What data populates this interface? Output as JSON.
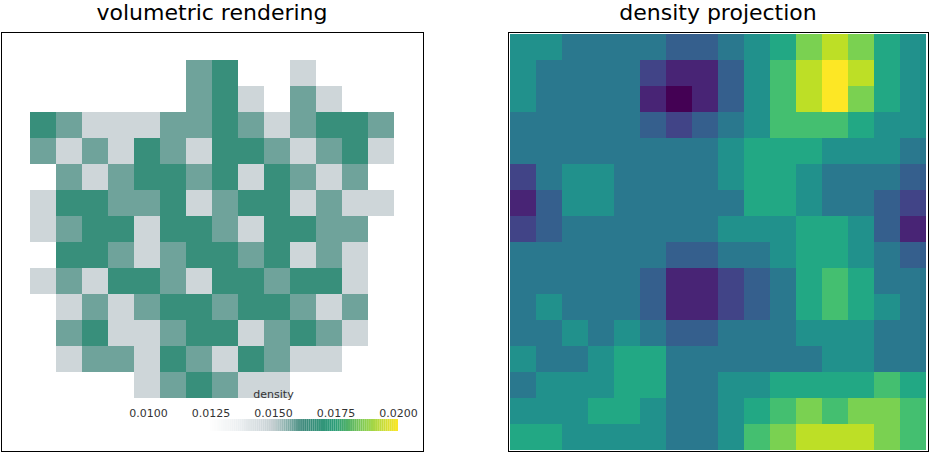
{
  "chart_data": [
    {
      "type": "heatmap",
      "title": "volumetric rendering",
      "tick_labels": false,
      "cells": [
        [
          null,
          null,
          null,
          null,
          null,
          null,
          null,
          null,
          null,
          null,
          null,
          null,
          null,
          null,
          null,
          null
        ],
        [
          null,
          null,
          null,
          null,
          null,
          null,
          null,
          0.0158,
          0.0166,
          null,
          null,
          0.0147,
          null,
          null,
          null,
          null
        ],
        [
          null,
          null,
          null,
          null,
          null,
          null,
          null,
          0.0158,
          0.0166,
          0.0147,
          null,
          0.0158,
          0.0147,
          null,
          null,
          null
        ],
        [
          null,
          0.0166,
          0.0158,
          0.0147,
          0.0147,
          0.0147,
          0.0158,
          0.0158,
          0.0166,
          0.0158,
          0.0147,
          0.0158,
          0.0166,
          0.0166,
          0.0158,
          null
        ],
        [
          null,
          0.0158,
          0.0147,
          0.0158,
          0.0147,
          0.0166,
          0.0158,
          0.0147,
          0.0166,
          0.0166,
          0.0158,
          0.0147,
          0.0158,
          0.0166,
          0.0147,
          null
        ],
        [
          null,
          null,
          0.0158,
          0.0147,
          0.0158,
          0.0166,
          0.0166,
          0.0158,
          0.0166,
          0.0147,
          0.0166,
          0.0158,
          0.0147,
          0.0158,
          null,
          null
        ],
        [
          null,
          0.0147,
          0.0166,
          0.0166,
          0.0158,
          0.0158,
          0.0166,
          0.0147,
          0.0158,
          0.0166,
          0.0166,
          0.0147,
          0.0158,
          0.0147,
          0.0147,
          null
        ],
        [
          null,
          0.0147,
          0.0158,
          0.0166,
          0.0166,
          0.0147,
          0.0166,
          0.0166,
          0.0158,
          0.0147,
          0.0166,
          0.0166,
          0.0158,
          0.0158,
          null,
          null
        ],
        [
          null,
          null,
          0.0166,
          0.0166,
          0.0158,
          0.0147,
          0.0158,
          0.0166,
          0.0166,
          0.0158,
          0.0166,
          0.0147,
          0.0158,
          0.0147,
          null,
          null
        ],
        [
          null,
          0.0147,
          0.0158,
          0.0147,
          0.0166,
          0.0166,
          0.0158,
          0.0147,
          0.0166,
          0.0166,
          0.0158,
          0.0166,
          0.0166,
          0.0147,
          null,
          null
        ],
        [
          null,
          null,
          0.0147,
          0.0158,
          0.0147,
          0.0158,
          0.0166,
          0.0166,
          0.0158,
          0.0166,
          0.0166,
          0.0158,
          0.0147,
          0.0158,
          null,
          null
        ],
        [
          null,
          null,
          0.0158,
          0.0166,
          0.0147,
          0.0147,
          0.0158,
          0.0166,
          0.0166,
          0.0147,
          0.0158,
          0.0166,
          0.0158,
          0.0147,
          null,
          null
        ],
        [
          null,
          null,
          0.0147,
          0.0158,
          0.0158,
          0.0147,
          0.0166,
          0.0158,
          0.0147,
          0.0166,
          0.0158,
          0.0147,
          0.0147,
          null,
          null,
          null
        ],
        [
          null,
          null,
          null,
          null,
          null,
          0.0147,
          0.0158,
          0.0166,
          0.0158,
          0.0147,
          0.0147,
          null,
          null,
          null,
          null,
          null
        ],
        [
          null,
          null,
          null,
          null,
          null,
          null,
          null,
          null,
          null,
          null,
          null,
          null,
          null,
          null,
          null,
          null
        ],
        [
          null,
          null,
          null,
          null,
          null,
          null,
          null,
          null,
          null,
          null,
          null,
          null,
          null,
          null,
          null,
          null
        ]
      ],
      "colorbar": {
        "label": "density",
        "range": [
          0.01,
          0.02
        ],
        "ticks": [
          {
            "value": 0.01,
            "label": "0.0100"
          },
          {
            "value": 0.0125,
            "label": "0.0125"
          },
          {
            "value": 0.015,
            "label": "0.0150"
          },
          {
            "value": 0.0175,
            "label": "0.0175"
          },
          {
            "value": 0.02,
            "label": "0.0200"
          }
        ]
      }
    },
    {
      "type": "heatmap",
      "title": "density projection",
      "tick_labels": false,
      "cells": [
        [
          5,
          5,
          4,
          4,
          4,
          4,
          3,
          3,
          4,
          5,
          6,
          8,
          9,
          8,
          6,
          5
        ],
        [
          5,
          4,
          4,
          4,
          4,
          2,
          1,
          1,
          3,
          5,
          7,
          9,
          10,
          9,
          6,
          5
        ],
        [
          5,
          4,
          4,
          4,
          4,
          1,
          0,
          1,
          3,
          5,
          7,
          9,
          10,
          8,
          6,
          5
        ],
        [
          4,
          4,
          4,
          4,
          4,
          3,
          2,
          3,
          4,
          5,
          7,
          7,
          7,
          6,
          5,
          5
        ],
        [
          4,
          4,
          4,
          4,
          4,
          4,
          4,
          4,
          5,
          6,
          6,
          6,
          5,
          5,
          5,
          4
        ],
        [
          2,
          4,
          5,
          5,
          4,
          4,
          4,
          4,
          5,
          6,
          6,
          5,
          4,
          4,
          4,
          3
        ],
        [
          1,
          3,
          5,
          5,
          4,
          4,
          4,
          4,
          4,
          6,
          6,
          5,
          4,
          4,
          3,
          2
        ],
        [
          2,
          3,
          4,
          4,
          4,
          4,
          4,
          4,
          5,
          5,
          5,
          6,
          6,
          5,
          3,
          1
        ],
        [
          4,
          4,
          4,
          4,
          4,
          4,
          3,
          3,
          4,
          4,
          5,
          6,
          6,
          5,
          4,
          3
        ],
        [
          4,
          4,
          4,
          4,
          4,
          3,
          1,
          1,
          2,
          3,
          4,
          6,
          7,
          6,
          4,
          4
        ],
        [
          4,
          5,
          4,
          4,
          4,
          3,
          1,
          1,
          2,
          3,
          4,
          6,
          7,
          6,
          5,
          4
        ],
        [
          4,
          4,
          5,
          4,
          5,
          4,
          3,
          3,
          4,
          4,
          4,
          5,
          5,
          5,
          4,
          4
        ],
        [
          5,
          4,
          4,
          5,
          6,
          6,
          4,
          4,
          4,
          4,
          4,
          4,
          5,
          5,
          4,
          4
        ],
        [
          4,
          5,
          5,
          5,
          6,
          6,
          4,
          4,
          5,
          5,
          6,
          6,
          6,
          6,
          7,
          6
        ],
        [
          5,
          5,
          5,
          6,
          6,
          5,
          4,
          4,
          5,
          6,
          7,
          8,
          7,
          8,
          8,
          7
        ],
        [
          6,
          6,
          5,
          5,
          5,
          5,
          4,
          4,
          5,
          7,
          8,
          9,
          9,
          9,
          8,
          7
        ]
      ]
    }
  ]
}
